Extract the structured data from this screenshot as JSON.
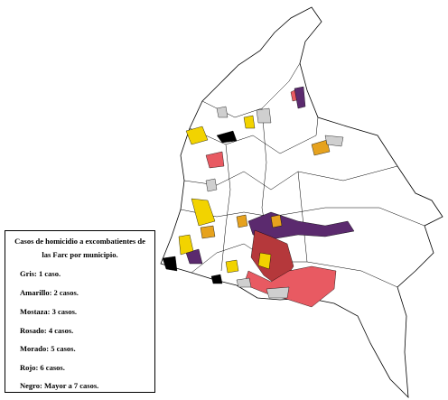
{
  "legend": {
    "title_lines": [
      "Casos de homicidio  a excombatientes  de",
      "las Farc por municipio."
    ],
    "items": [
      "Gris:  1 caso.",
      "Amarillo:  2 casos.",
      "Mostaza:  3 casos.",
      "Rosado:   4 casos.",
      "Morado:   5 casos.",
      "Rojo:  6 casos.",
      "Negro:  Mayor  a 7 casos."
    ]
  }
}
